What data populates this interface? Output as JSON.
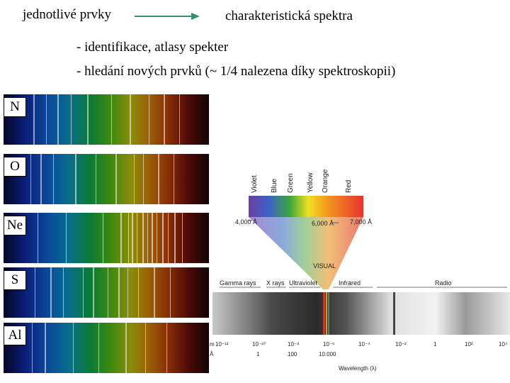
{
  "header": {
    "left_label": "jednotlivé prvky",
    "right_label": "charakteristická spektra",
    "arrow_color": "#3a8f6a"
  },
  "bullets": [
    "- identifikace, atlasy spekter",
    "- hledání nových prvků  (~ 1/4 nalezena díky spektroskopii)"
  ],
  "elements": [
    {
      "symbol": "N"
    },
    {
      "symbol": "O"
    },
    {
      "symbol": "Ne"
    },
    {
      "symbol": "S"
    },
    {
      "symbol": "Al"
    }
  ],
  "em_diagram": {
    "colors": [
      "Violet",
      "Blue",
      "Green",
      "Yellow",
      "Orange",
      "Red"
    ],
    "visible_wavelengths": [
      "4,000 Å",
      "6,000 Å",
      "7,000 Å"
    ],
    "visual_label": "VISUAL",
    "bands": [
      "Gamma rays",
      "X rays",
      "Ultraviolet",
      "Infrared",
      "Radio"
    ],
    "wavelength_m_ticks": [
      "10⁻¹²",
      "10⁻¹⁰",
      "10⁻⁸",
      "10⁻⁶",
      "10⁻⁴",
      "10⁻²",
      "1",
      "10²",
      "10⁴"
    ],
    "axis_left_m": "m",
    "axis_left_a": "Å",
    "wavelength_a_ticks": [
      "1",
      "100",
      "10.000"
    ],
    "axis_title": "Wavelength (λ)"
  }
}
